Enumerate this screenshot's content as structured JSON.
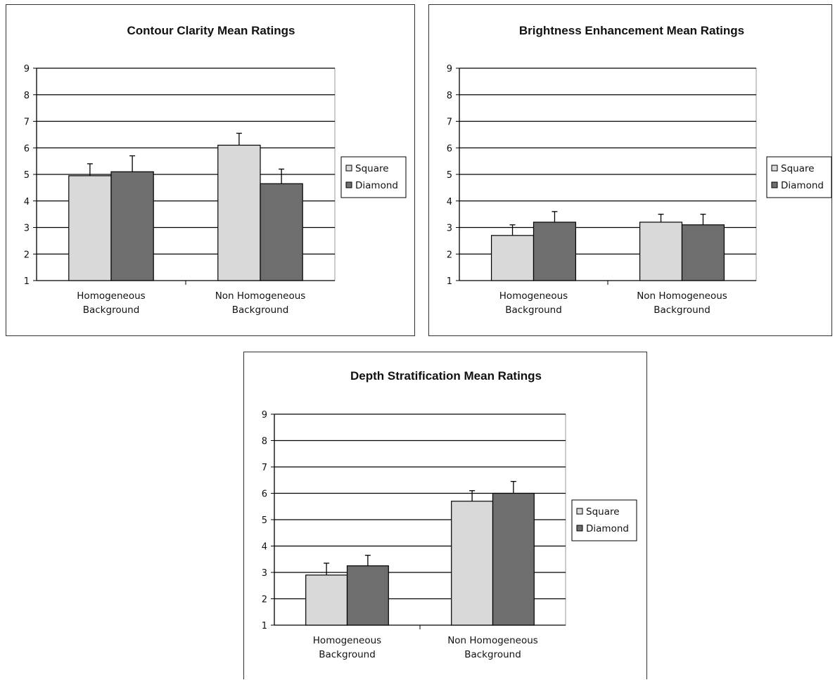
{
  "colors": {
    "square": "#d9d9d9",
    "diamond": "#6e6e6e",
    "grid": "#000000",
    "errorbar": "#000000"
  },
  "chart_data": [
    {
      "type": "bar",
      "title": "Contour Clarity Mean Ratings",
      "categories": [
        [
          "Homogeneous",
          "Background"
        ],
        [
          "Non Homogeneous",
          "Background"
        ]
      ],
      "series": [
        {
          "name": "Square",
          "values": [
            4.95,
            6.1
          ],
          "error": [
            0.45,
            0.45
          ]
        },
        {
          "name": "Diamond",
          "values": [
            5.1,
            4.65
          ],
          "error": [
            0.6,
            0.55
          ]
        }
      ],
      "yticks": [
        "1",
        "2",
        "3",
        "4",
        "5",
        "6",
        "7",
        "8",
        "9"
      ],
      "ylim": [
        1,
        9
      ],
      "grid": true,
      "legend": "right"
    },
    {
      "type": "bar",
      "title": "Brightness Enhancement Mean Ratings",
      "categories": [
        [
          "Homogeneous",
          "Background"
        ],
        [
          "Non Homogeneous",
          "Background"
        ]
      ],
      "series": [
        {
          "name": "Square",
          "values": [
            2.7,
            3.2
          ],
          "error": [
            0.4,
            0.3
          ]
        },
        {
          "name": "Diamond",
          "values": [
            3.2,
            3.1
          ],
          "error": [
            0.4,
            0.4
          ]
        }
      ],
      "yticks": [
        "1",
        "2",
        "3",
        "4",
        "5",
        "6",
        "7",
        "8",
        "9"
      ],
      "ylim": [
        1,
        9
      ],
      "grid": true,
      "legend": "right"
    },
    {
      "type": "bar",
      "title": "Depth Stratification Mean Ratings",
      "categories": [
        [
          "Homogeneous",
          "Background"
        ],
        [
          "Non Homogeneous",
          "Background"
        ]
      ],
      "series": [
        {
          "name": "Square",
          "values": [
            2.9,
            5.7
          ],
          "error": [
            0.45,
            0.4
          ]
        },
        {
          "name": "Diamond",
          "values": [
            3.25,
            6.0
          ],
          "error": [
            0.4,
            0.45
          ]
        }
      ],
      "yticks": [
        "1",
        "2",
        "3",
        "4",
        "5",
        "6",
        "7",
        "8",
        "9"
      ],
      "ylim": [
        1,
        9
      ],
      "grid": true,
      "legend": "right"
    }
  ]
}
